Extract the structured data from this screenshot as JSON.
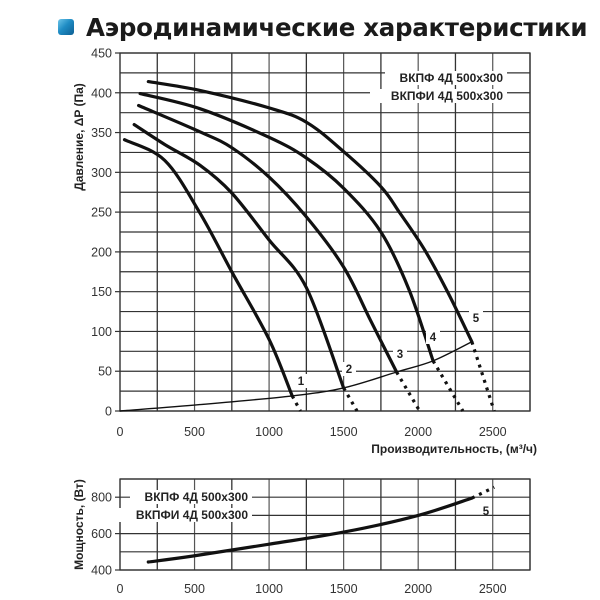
{
  "header": {
    "title": "Аэродинамические характеристики",
    "icon": "blue-square-icon",
    "icon_color": "#1f8cc4"
  },
  "chart_data": [
    {
      "type": "line",
      "title": "Аэродинамические характеристики",
      "xlabel": "Производительность, (м³/ч)",
      "ylabel": "Давление, ΔP (Па)",
      "xlim": [
        0,
        2750
      ],
      "ylim": [
        0,
        450
      ],
      "xticks": [
        0,
        500,
        1000,
        1500,
        2000,
        2500
      ],
      "yticks": [
        0,
        50,
        100,
        150,
        200,
        250,
        300,
        350,
        400,
        450
      ],
      "grid": true,
      "grid_step_x": 250,
      "grid_step_y": 25,
      "legend": [
        "ВКПФ  4Д 500х300",
        "ВКПФИ  4Д 500х300"
      ],
      "legend_position": "upper right",
      "series": [
        {
          "name": "1",
          "x": [
            30,
            300,
            536,
            750,
            1000,
            1155
          ],
          "y": [
            341,
            315,
            249,
            175,
            90,
            19
          ],
          "dotted_extension": {
            "x": [
              1155,
              1210
            ],
            "y": [
              19,
              0
            ]
          }
        },
        {
          "name": "2",
          "x": [
            95,
            300,
            536,
            750,
            1000,
            1250,
            1500
          ],
          "y": [
            360,
            335,
            309,
            274,
            215,
            155,
            29
          ],
          "dotted_extension": {
            "x": [
              1500,
              1590
            ],
            "y": [
              29,
              0
            ]
          }
        },
        {
          "name": "3",
          "x": [
            125,
            536,
            750,
            1000,
            1250,
            1500,
            1680,
            1855
          ],
          "y": [
            384,
            351,
            331,
            294,
            244,
            181,
            114,
            49
          ],
          "dotted_extension": {
            "x": [
              1855,
              2010
            ],
            "y": [
              49,
              0
            ]
          }
        },
        {
          "name": "4",
          "x": [
            135,
            536,
            1000,
            1250,
            1500,
            1750,
            1940,
            2100
          ],
          "y": [
            399,
            380,
            344,
            318,
            280,
            225,
            152,
            63
          ],
          "dotted_extension": {
            "x": [
              2100,
              2300
            ],
            "y": [
              63,
              0
            ]
          }
        },
        {
          "name": "5",
          "x": [
            190,
            536,
            1000,
            1250,
            1500,
            1750,
            1877,
            2045,
            2210,
            2360
          ],
          "y": [
            414,
            403,
            381,
            363,
            326,
            282,
            249,
            202,
            145,
            87
          ],
          "dotted_extension": {
            "x": [
              2360,
              2510
            ],
            "y": [
              87,
              0
            ]
          }
        },
        {
          "name": "system",
          "x": [
            0,
            536,
            1155,
            1500,
            1855,
            2100,
            2360
          ],
          "y": [
            0,
            8,
            19,
            29,
            49,
            63,
            87
          ]
        }
      ],
      "curve_labels": [
        "1",
        "2",
        "3",
        "4",
        "5"
      ]
    },
    {
      "type": "line",
      "xlabel": "",
      "ylabel": "Мощность, (Вт)",
      "xlim": [
        0,
        2750
      ],
      "ylim": [
        400,
        900
      ],
      "xticks": [
        0,
        500,
        1000,
        1500,
        2000,
        2500
      ],
      "yticks": [
        400,
        600,
        800
      ],
      "grid": true,
      "grid_step_x": 250,
      "grid_step_y": 100,
      "legend": [
        "ВКПФ  4Д 500х300",
        "ВКПФИ  4Д 500х300"
      ],
      "legend_position": "upper left",
      "series": [
        {
          "name": "5",
          "x": [
            190,
            490,
            1000,
            1500,
            2000,
            2360
          ],
          "y": [
            444,
            477,
            542,
            608,
            700,
            795
          ],
          "dotted_extension": {
            "x": [
              2360,
              2510
            ],
            "y": [
              795,
              855
            ]
          }
        }
      ]
    }
  ]
}
